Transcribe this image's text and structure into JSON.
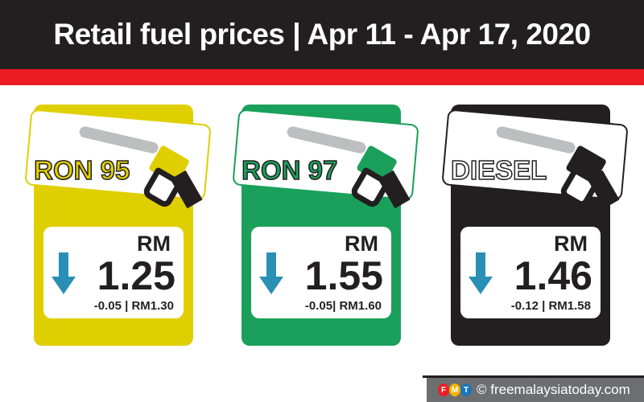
{
  "header": {
    "title": "Retail fuel prices | Apr 11 - Apr 17, 2020"
  },
  "colors": {
    "header_bg": "#231f20",
    "band": "#ed1c24",
    "ron95": "#e0cf00",
    "ron97": "#1aa05a",
    "diesel": "#231f20",
    "arrow": "#2a8fb5"
  },
  "fuels": [
    {
      "name": "RON 95",
      "currency": "RM",
      "price": "1.25",
      "change": "-0.05 | RM1.30",
      "trend": "down",
      "color": "#e0cf00"
    },
    {
      "name": "RON 97",
      "currency": "RM",
      "price": "1.55",
      "change": "-0.05| RM1.60",
      "trend": "down",
      "color": "#1aa05a"
    },
    {
      "name": "DIESEL",
      "currency": "RM",
      "price": "1.46",
      "change": "-0.12 | RM1.58",
      "trend": "down",
      "color": "#231f20"
    }
  ],
  "footer": {
    "logo_letters": [
      "F",
      "M",
      "T"
    ],
    "credit": "© freemalaysiatoday.com"
  }
}
